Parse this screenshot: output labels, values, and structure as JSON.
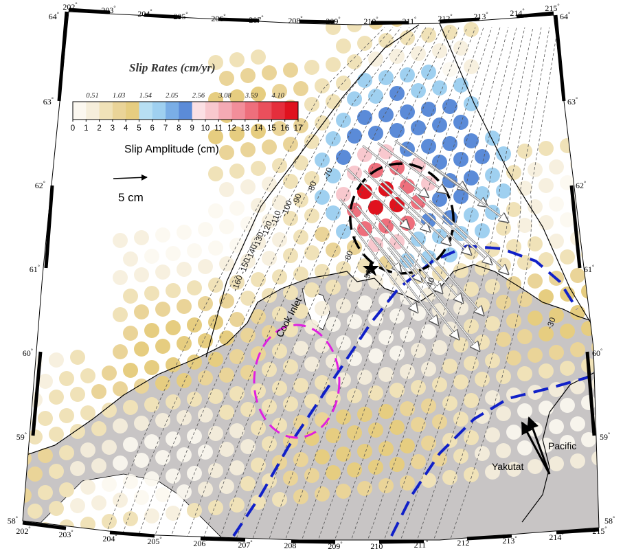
{
  "legend": {
    "title": "Slip Rates (cm/yr)",
    "rate_labels": [
      "0.51",
      "1.03",
      "1.54",
      "2.05",
      "2.56",
      "3.08",
      "3.59",
      "4.10"
    ],
    "amplitude_labels": [
      "0",
      "1",
      "2",
      "3",
      "4",
      "5",
      "6",
      "7",
      "8",
      "9",
      "10",
      "11",
      "12",
      "13",
      "14",
      "15",
      "16",
      "17"
    ],
    "amplitude_title": "Slip Amplitude (cm)",
    "scale_label": "5 cm",
    "colors": [
      "#fcf8f0",
      "#f6eedb",
      "#f0e2b8",
      "#ead498",
      "#e6cd80",
      "#b7dff3",
      "#9fd0f0",
      "#7aaee6",
      "#5b8bd8",
      "#fbe0e4",
      "#f8c8ce",
      "#f4aab4",
      "#f28e9a",
      "#ee6f7c",
      "#ea4f5c",
      "#e52e3c",
      "#e0121e"
    ]
  },
  "top_lon_labels": [
    "202",
    "203",
    "204",
    "205",
    "206",
    "207",
    "208",
    "209",
    "210",
    "211",
    "212",
    "213",
    "214",
    "215"
  ],
  "bottom_lon_labels": [
    "202",
    "203",
    "204",
    "205",
    "206",
    "207",
    "208",
    "209",
    "210",
    "211",
    "212",
    "213",
    "214",
    "215"
  ],
  "left_lat_labels": [
    "64",
    "63",
    "62",
    "61",
    "60",
    "59",
    "58"
  ],
  "right_lat_labels": [
    "64",
    "63",
    "62",
    "61",
    "60",
    "59",
    "58"
  ],
  "contour_labels": [
    "-160",
    "-150",
    "-140",
    "-130",
    "-120",
    "-110",
    "-100",
    "-90",
    "-80",
    "-70",
    "-60",
    "-50",
    "-40",
    "-30"
  ],
  "places": {
    "cook_inlet": "Cook Inlet",
    "yakutat": "Yakutat",
    "pacific": "Pacific"
  }
}
